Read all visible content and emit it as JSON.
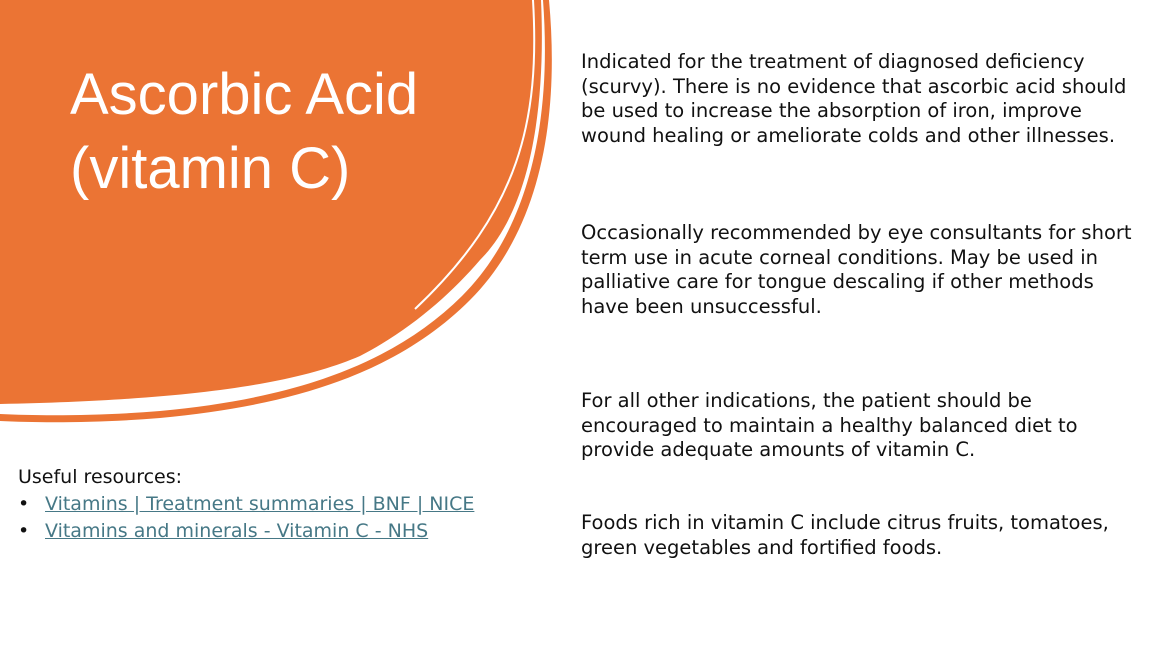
{
  "slide": {
    "title": "Ascorbic Acid (vitamin C)",
    "accent_color": "#EB7434",
    "paragraphs": [
      "Indicated for the treatment of diagnosed deficiency (scurvy). There is no evidence that ascorbic acid should be used to increase the absorption of iron, improve wound healing or ameliorate colds and other illnesses.",
      "Occasionally recommended by eye consultants for short term use in acute corneal conditions. May be used in palliative care for tongue descaling if other methods have been unsuccessful.",
      "For all other indications, the patient should be encouraged to maintain a healthy balanced diet to provide adequate amounts of vitamin C.",
      "Foods rich in vitamin C include citrus fruits, tomatoes, green vegetables and fortified foods."
    ],
    "resources": {
      "heading": "Useful resources:",
      "links": [
        {
          "label": "Vitamins | Treatment summaries | BNF | NICE"
        },
        {
          "label": "Vitamins and minerals - Vitamin C - NHS"
        }
      ],
      "link_color": "#467886"
    }
  }
}
